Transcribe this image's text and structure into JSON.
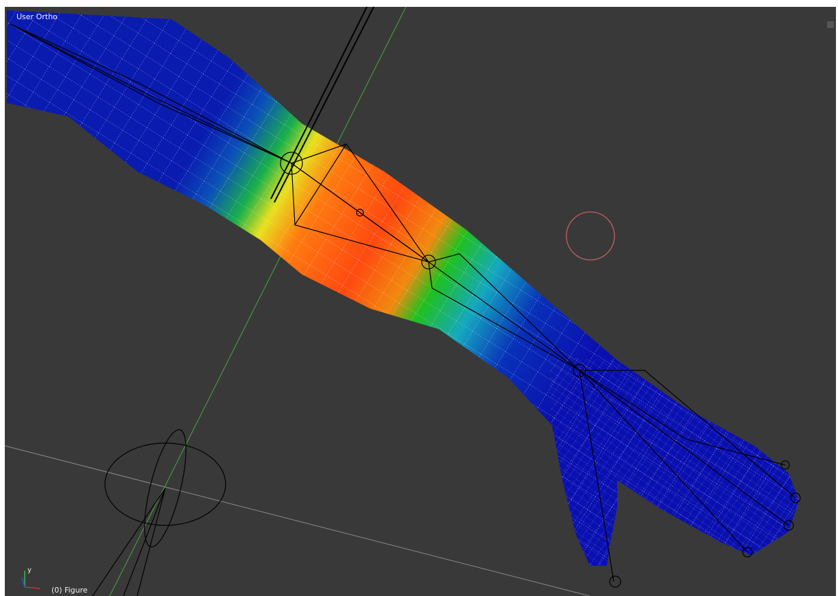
{
  "header": {
    "view_label": "User Ortho"
  },
  "footer": {
    "object_label": "(0) Figure"
  },
  "gizmo": {
    "y_label": "y"
  }
}
